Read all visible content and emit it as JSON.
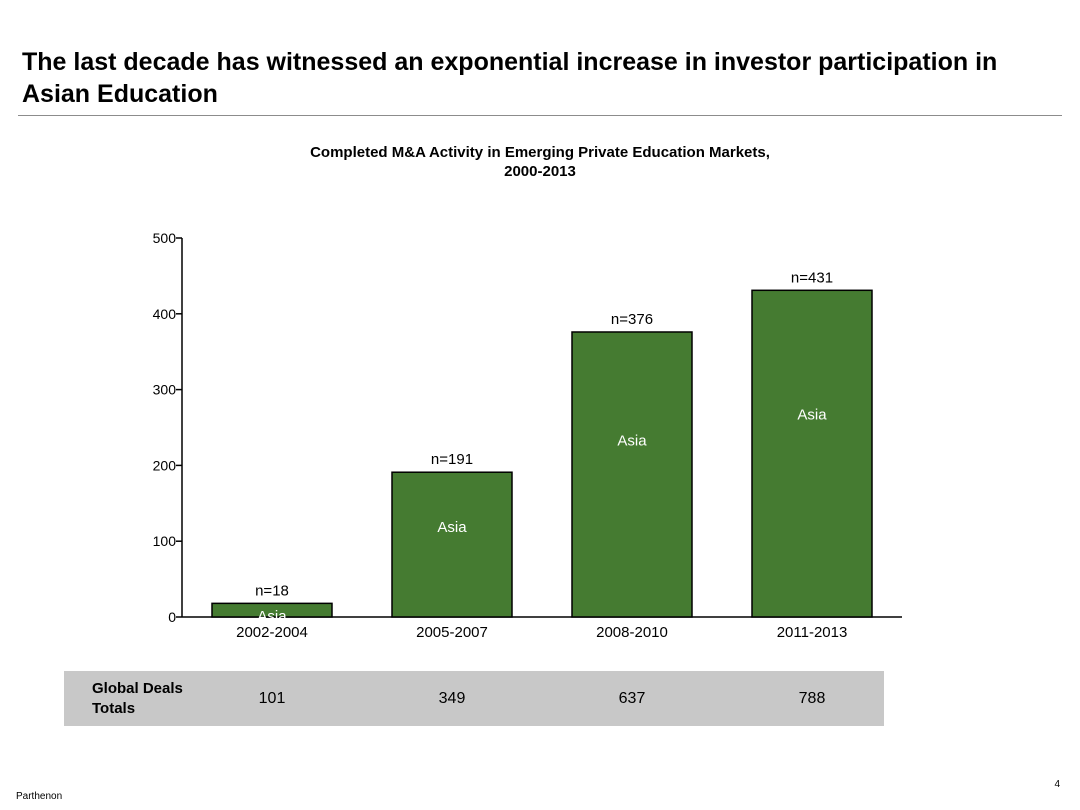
{
  "slide": {
    "title": "The last decade has witnessed an exponential increase in investor participation in Asian Education",
    "footer_brand": "Parthenon",
    "page_number": "4"
  },
  "chart_data": {
    "type": "bar",
    "title_lines": [
      "Completed M&A Activity in Emerging Private Education Markets,",
      "2000-2013"
    ],
    "categories": [
      "2002-2004",
      "2005-2007",
      "2008-2010",
      "2011-2013"
    ],
    "series": [
      {
        "name": "Asia",
        "values": [
          18,
          191,
          376,
          431
        ]
      }
    ],
    "total_labels": [
      "n=18",
      "n=191",
      "n=376",
      "n=431"
    ],
    "ylim": [
      0,
      500
    ],
    "yticks": [
      0,
      100,
      200,
      300,
      400,
      500
    ],
    "xlabel": "",
    "ylabel": "",
    "grid": false,
    "bar_color": "#457b31"
  },
  "global_totals": {
    "label": "Global Deals Totals",
    "values": [
      "101",
      "349",
      "637",
      "788"
    ]
  }
}
